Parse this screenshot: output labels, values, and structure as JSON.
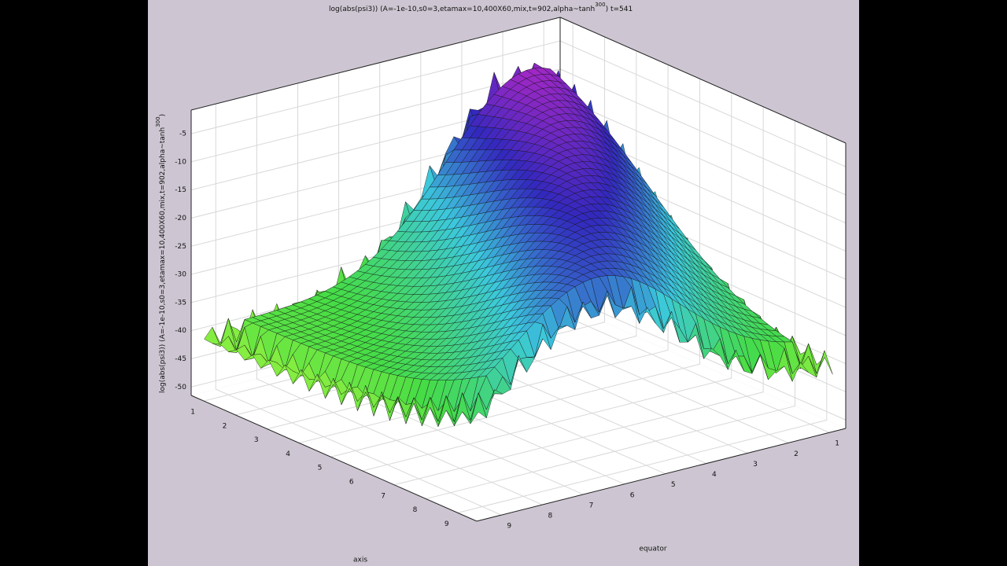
{
  "chart_data": {
    "type": "surface",
    "title_parts": [
      "log(abs(psi3)) (A=-1e-10,s0=3,etamax=10,400X60,mix,t=902,alpha~tanh",
      "300",
      ") t=541"
    ],
    "zlabel_parts": [
      "log(abs(psi3)) (A=-1e-10,s0=3,etamax=10,400X60,mix,t=902,alpha~tanh",
      "300",
      ")"
    ],
    "xlabel": "axis",
    "ylabel": "equator",
    "xlim": [
      0.6,
      9.6
    ],
    "xticks": [
      1,
      2,
      3,
      4,
      5,
      6,
      7,
      8,
      9
    ],
    "ylim": [
      0.6,
      9.6
    ],
    "yticks": [
      1,
      2,
      3,
      4,
      5,
      6,
      7,
      8,
      9
    ],
    "zlim": [
      -51.5,
      -0.8
    ],
    "zticks": [
      -5,
      -10,
      -15,
      -20,
      -25,
      -30,
      -35,
      -40,
      -45,
      -50
    ],
    "grid": true
  }
}
